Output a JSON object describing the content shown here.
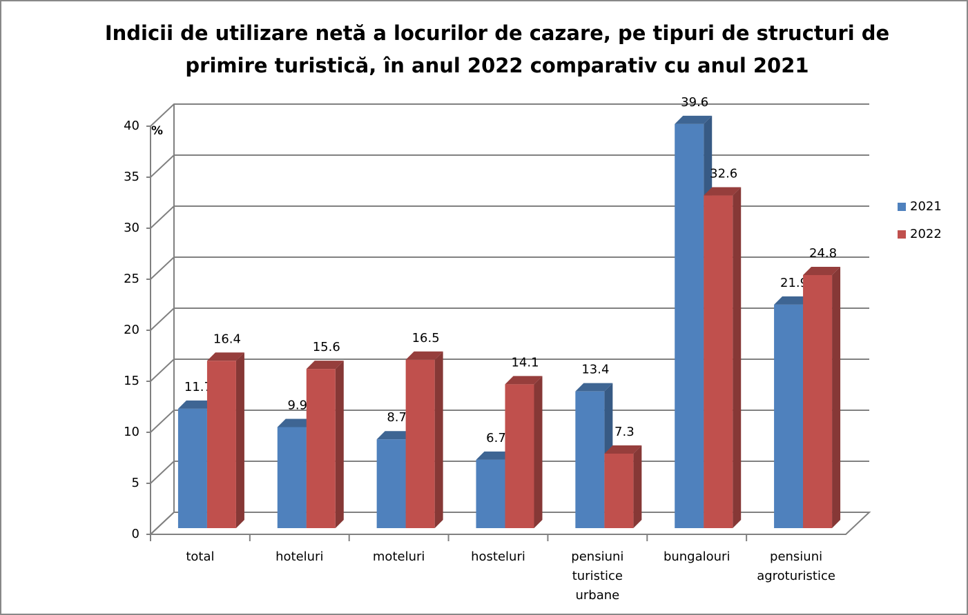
{
  "chart_data": {
    "type": "bar3d",
    "title": [
      "Indicii de utilizare netă a locurilor de cazare, pe tipuri de structuri de",
      "primire turistică, în anul 2022 comparativ cu anul 2021"
    ],
    "y_unit": "%",
    "categories": [
      "total",
      "hoteluri",
      "moteluri",
      "hosteluri",
      "pensiuni turistice urbane",
      "bungalouri",
      "pensiuni agroturistice"
    ],
    "series": [
      {
        "name": "2021",
        "color": "#4f81bd",
        "values": [
          11.7,
          9.9,
          8.7,
          6.7,
          13.4,
          39.6,
          21.9
        ]
      },
      {
        "name": "2022",
        "color": "#c0504d",
        "values": [
          16.4,
          15.6,
          16.5,
          14.1,
          7.3,
          32.6,
          24.8
        ]
      }
    ],
    "ylim": [
      0,
      40
    ],
    "yticks": [
      0,
      5,
      10,
      15,
      20,
      25,
      30,
      35,
      40
    ],
    "grid": true,
    "legend": "right"
  }
}
